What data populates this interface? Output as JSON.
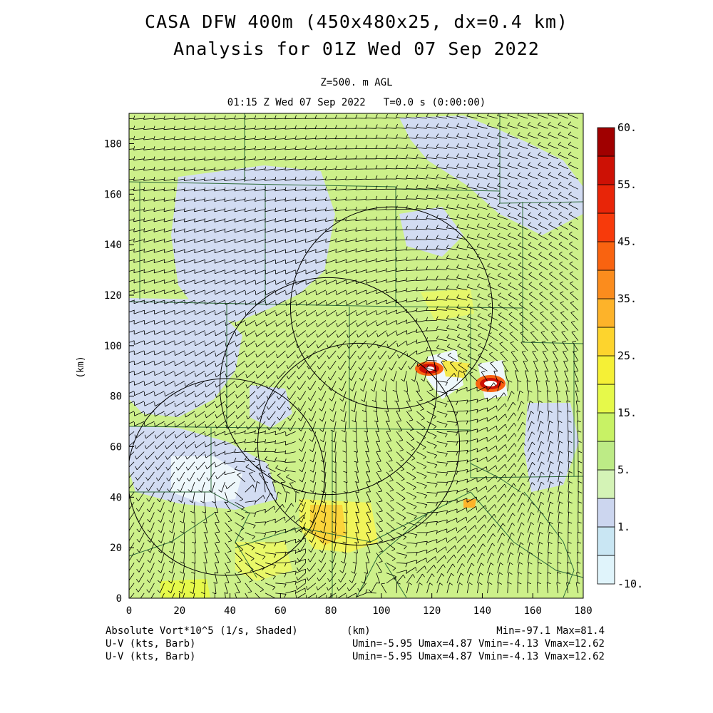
{
  "header": {
    "title_line1": "CASA DFW 400m (450x480x25, dx=0.4 km)",
    "title_line2": "Analysis for 01Z Wed 07 Sep 2022",
    "level": "Z=500. m AGL",
    "time": "01:15 Z Wed 07 Sep 2022   T=0.0 s (0:00:00)"
  },
  "footer": {
    "field_label": "Absolute Vort*10^5 (1/s, Shaded)",
    "xunit": "(km)",
    "minmax": "Min=-97.1 Max=81.4",
    "uv1_label": "U-V (kts, Barb)",
    "uv1_stats": "Umin=-5.95 Umax=4.87 Vmin=-4.13 Vmax=12.62",
    "uv2_label": "U-V (kts, Barb)",
    "uv2_stats": "Umin=-5.95 Umax=4.87 Vmin=-4.13 Vmax=12.62"
  },
  "chart_data": {
    "type": "heatmap",
    "xlabel": "(km)",
    "ylabel": "(km)",
    "xlim": [
      0,
      180
    ],
    "ylim": [
      0,
      192
    ],
    "xticks": [
      0,
      20,
      40,
      60,
      80,
      100,
      120,
      140,
      160,
      180
    ],
    "yticks": [
      0,
      20,
      40,
      60,
      80,
      100,
      120,
      140,
      160,
      180
    ],
    "colorbar": {
      "bins": [
        {
          "color": "#e0f4fb"
        },
        {
          "color": "#c9e6f3"
        },
        {
          "color": "#ccd6ef"
        },
        {
          "color": "#d4f3b6"
        },
        {
          "color": "#bdeb86"
        },
        {
          "color": "#c8f265"
        },
        {
          "color": "#e6f94a"
        },
        {
          "color": "#f5f036"
        },
        {
          "color": "#fdd42d"
        },
        {
          "color": "#fdb32a"
        },
        {
          "color": "#fb8c1d"
        },
        {
          "color": "#f96310"
        },
        {
          "color": "#f73a0b"
        },
        {
          "color": "#e82508"
        },
        {
          "color": "#cd1105"
        },
        {
          "color": "#a00000"
        }
      ],
      "labels": [
        "-10.",
        "1.",
        "5.",
        "15.",
        "25.",
        "35.",
        "45.",
        "55.",
        "60."
      ]
    },
    "radar_rings": [
      {
        "cx": 38.5,
        "cy": 48,
        "r": 39
      },
      {
        "cx": 79,
        "cy": 84,
        "r": 43
      },
      {
        "cx": 104,
        "cy": 115,
        "r": 40
      },
      {
        "cx": 91,
        "cy": 61,
        "r": 40
      }
    ],
    "vortex_maxima": [
      {
        "x": 120,
        "y": 91
      },
      {
        "x": 144,
        "y": 85
      }
    ]
  }
}
